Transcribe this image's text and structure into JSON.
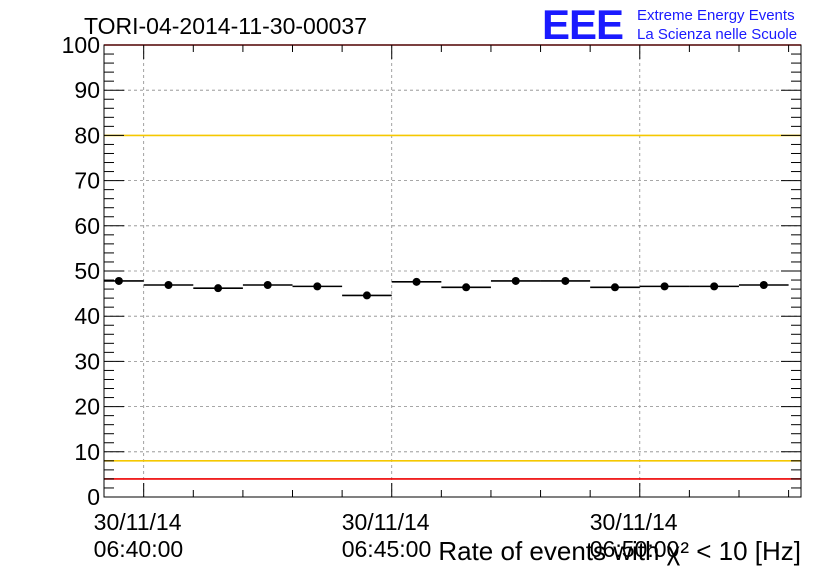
{
  "logo": {
    "text": "EEE",
    "line1": "Extreme Energy Events",
    "line2": "La Scienza nelle Scuole",
    "color": "#1a1aff"
  },
  "chart_data": {
    "type": "scatter",
    "title": "TORI-04-2014-11-30-00037",
    "xlabel": "Rate of events with χ² < 10 [Hz]",
    "ylabel": "",
    "ylim": [
      0,
      100
    ],
    "xlim_minutes": [
      -0.8,
      13.25
    ],
    "x_unit": "minutes after 06:40:00 on 30/11/14",
    "y_ticks": [
      0,
      10,
      20,
      30,
      40,
      50,
      60,
      70,
      80,
      90,
      100
    ],
    "x_tick_labels": [
      {
        "minute": 0,
        "date": "30/11/14",
        "time": "06:40:00"
      },
      {
        "minute": 5,
        "date": "30/11/14",
        "time": "06:45:00"
      },
      {
        "minute": 10,
        "date": "30/11/14",
        "time": "06:50:00"
      }
    ],
    "bin_width_minutes": 1,
    "series": [
      {
        "name": "rate",
        "x_minutes": [
          -0.5,
          0.5,
          1.5,
          2.5,
          3.5,
          4.5,
          5.5,
          6.5,
          7.5,
          8.5,
          9.5,
          10.5,
          11.5,
          12.5
        ],
        "values": [
          47.8,
          46.9,
          46.2,
          46.9,
          46.6,
          44.6,
          47.6,
          46.4,
          47.8,
          47.8,
          46.4,
          46.6,
          46.6,
          46.9
        ],
        "color": "#000000"
      }
    ],
    "reference_lines": [
      {
        "y": 80,
        "color": "#f5c800"
      },
      {
        "y": 8,
        "color": "#f5c800"
      },
      {
        "y": 100,
        "color": "#ee0000"
      },
      {
        "y": 4,
        "color": "#ee0000"
      }
    ],
    "grid": true
  }
}
